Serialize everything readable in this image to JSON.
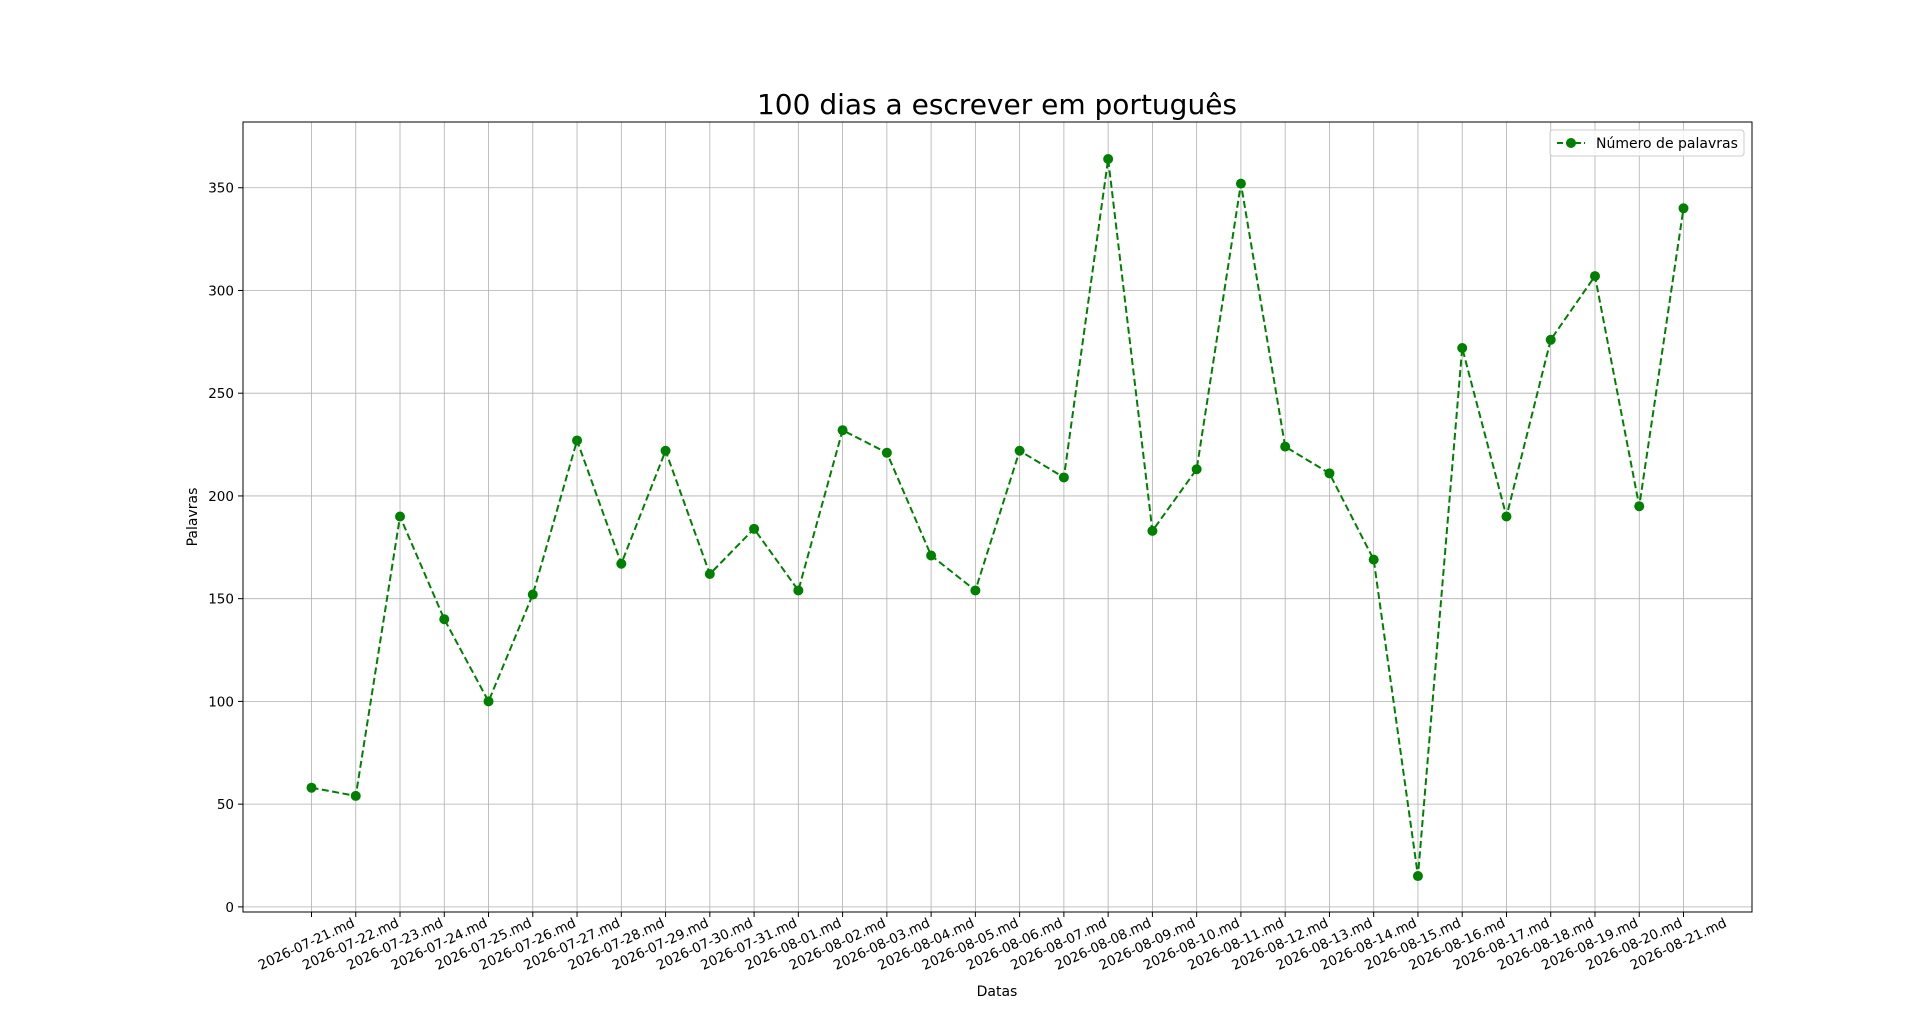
{
  "chart_data": {
    "type": "line",
    "title": "100 dias a escrever em português",
    "xlabel": "Datas",
    "ylabel": "Palavras",
    "categories": [
      "2026-07-21.md",
      "2026-07-22.md",
      "2026-07-23.md",
      "2026-07-24.md",
      "2026-07-25.md",
      "2026-07-26.md",
      "2026-07-27.md",
      "2026-07-28.md",
      "2026-07-29.md",
      "2026-07-30.md",
      "2026-07-31.md",
      "2026-08-01.md",
      "2026-08-02.md",
      "2026-08-03.md",
      "2026-08-04.md",
      "2026-08-05.md",
      "2026-08-06.md",
      "2026-08-07.md",
      "2026-08-08.md",
      "2026-08-09.md",
      "2026-08-10.md",
      "2026-08-11.md",
      "2026-08-12.md",
      "2026-08-13.md",
      "2026-08-14.md",
      "2026-08-15.md",
      "2026-08-16.md",
      "2026-08-17.md",
      "2026-08-18.md",
      "2026-08-19.md",
      "2026-08-20.md",
      "2026-08-21.md"
    ],
    "series": [
      {
        "name": "Número de palavras",
        "values": [
          58,
          54,
          190,
          140,
          100,
          152,
          227,
          167,
          222,
          162,
          184,
          154,
          232,
          221,
          171,
          154,
          222,
          209,
          364,
          183,
          213,
          352,
          224,
          211,
          169,
          15,
          272,
          190,
          276,
          307,
          195,
          340
        ],
        "color": "#008000",
        "line_style": "dashed",
        "marker": "circle"
      }
    ],
    "ylim": [
      -2.5,
      382
    ],
    "yticks": [
      0,
      50,
      100,
      150,
      200,
      250,
      300,
      350
    ],
    "grid": true,
    "legend_position": "top-right"
  }
}
